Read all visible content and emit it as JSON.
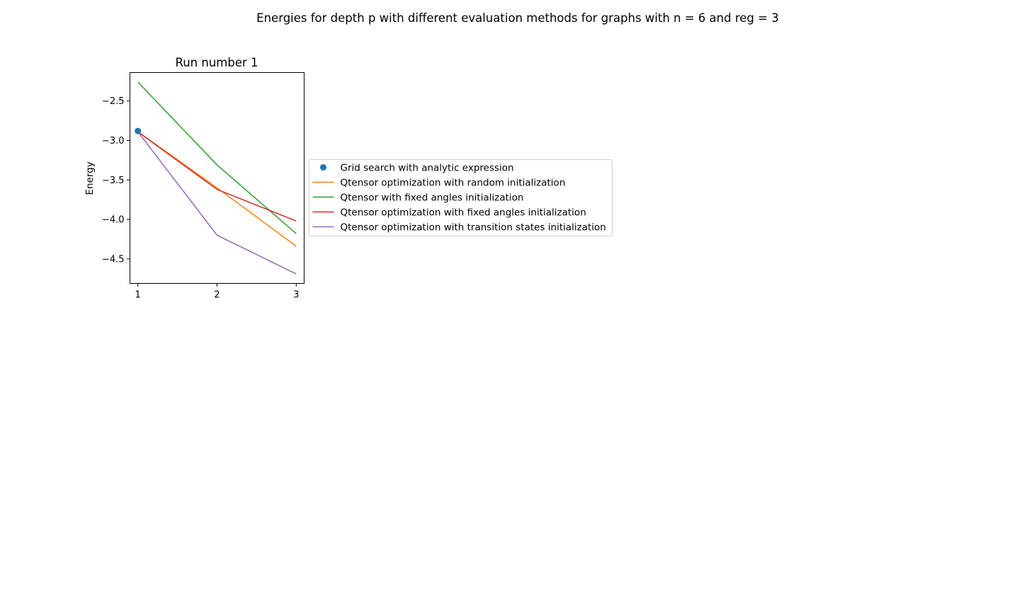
{
  "figure": {
    "suptitle": "Energies for depth p with different evaluation methods for graphs with n = 6 and reg = 3"
  },
  "chart_data": {
    "type": "line",
    "title": "Run number 1",
    "xlabel": "",
    "ylabel": "Energy",
    "x": [
      1,
      2,
      3
    ],
    "xticks": [
      1,
      2,
      3
    ],
    "xtick_labels": [
      "1",
      "2",
      "3"
    ],
    "xlim": [
      0.9,
      3.1
    ],
    "yticks": [
      -4.5,
      -4.0,
      -3.5,
      -3.0,
      -2.5
    ],
    "ytick_labels": [
      "−4.5",
      "−4.0",
      "−3.5",
      "−3.0",
      "−2.5"
    ],
    "ylim": [
      -4.81,
      -2.14
    ],
    "grid": false,
    "legend_placement": "center-left outside the axes",
    "series": [
      {
        "name": "Grid search with analytic expression",
        "kind": "scatter",
        "color": "#1f77b4",
        "x": [
          1
        ],
        "values": [
          -2.88
        ]
      },
      {
        "name": "Qtensor optimization with random initialization",
        "kind": "line",
        "color": "#ff7f0e",
        "x": [
          1,
          2,
          3
        ],
        "values": [
          -2.89,
          -3.6,
          -4.34
        ]
      },
      {
        "name": "Qtensor with fixed angles initialization",
        "kind": "line",
        "color": "#2ca02c",
        "x": [
          1,
          2,
          3
        ],
        "values": [
          -2.26,
          -3.31,
          -4.18
        ]
      },
      {
        "name": "Qtensor optimization with fixed angles initialization",
        "kind": "line",
        "color": "#d62728",
        "x": [
          1,
          2,
          3
        ],
        "values": [
          -2.89,
          -3.62,
          -4.02
        ]
      },
      {
        "name": "Qtensor optimization with transition states initialization",
        "kind": "line",
        "color": "#9467bd",
        "x": [
          1,
          2,
          3
        ],
        "values": [
          -2.89,
          -4.2,
          -4.69
        ]
      }
    ]
  }
}
